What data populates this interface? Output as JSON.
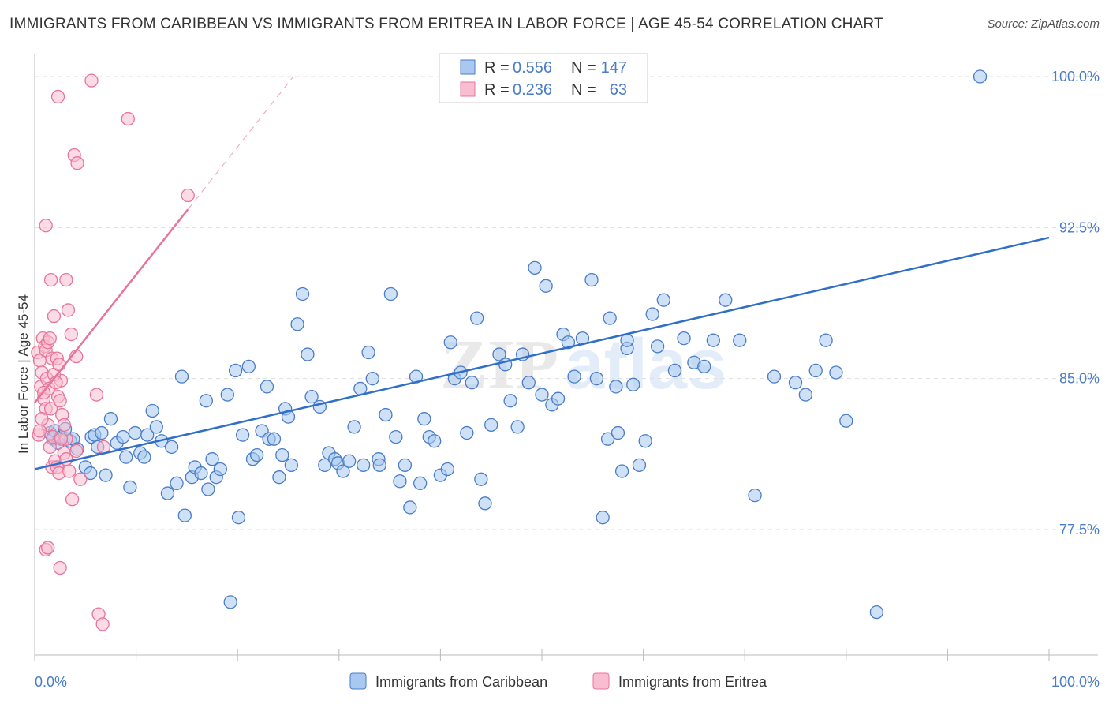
{
  "header": {
    "title": "IMMIGRANTS FROM CARIBBEAN VS IMMIGRANTS FROM ERITREA IN LABOR FORCE | AGE 45-54 CORRELATION CHART",
    "source": "Source: ZipAtlas.com"
  },
  "watermark": {
    "zip": "ZIP",
    "atlas": "atlas"
  },
  "stats_box": {
    "rows": [
      {
        "r_label": "R =",
        "r_value": "0.556",
        "n_label": "N =",
        "n_value": "147",
        "color": "#4a7cc7"
      },
      {
        "r_label": "R =",
        "r_value": "0.236",
        "n_label": "N =",
        "n_value": "63",
        "color": "#e8749a"
      }
    ]
  },
  "colors": {
    "caribbean_fill": "#a8c8f0",
    "caribbean_stroke": "#4a7cc7",
    "caribbean_line": "#2f6fc8",
    "eritrea_fill": "#f8bdd0",
    "eritrea_stroke": "#e8749a",
    "eritrea_line": "#e8749a",
    "grid": "#dddddd",
    "tick_label": "#4a7cc7"
  },
  "chart_data": {
    "type": "scatter",
    "title": "IMMIGRANTS FROM CARIBBEAN VS IMMIGRANTS FROM ERITREA IN LABOR FORCE | AGE 45-54 CORRELATION CHART",
    "xlabel": "",
    "ylabel": "In Labor Force | Age 45-54",
    "xlim": [
      0,
      100
    ],
    "ylim": [
      70.5,
      101.2
    ],
    "x_tick_labels": [
      "0.0%",
      "100.0%"
    ],
    "y_ticks": [
      77.5,
      85.0,
      92.5,
      100.0
    ],
    "y_tick_labels": [
      "77.5%",
      "85.0%",
      "92.5%",
      "100.0%"
    ],
    "grid": true,
    "legend_position": "bottom-center",
    "series": [
      {
        "name": "Immigrants from Caribbean",
        "r": 0.556,
        "n": 147,
        "trend": {
          "x0": 0,
          "y0": 80.5,
          "x1": 100,
          "y1": 92.0
        },
        "points": [
          [
            1.5,
            82.3
          ],
          [
            1.8,
            82.0
          ],
          [
            2.0,
            82.4
          ],
          [
            2.3,
            81.8
          ],
          [
            2.6,
            82.1
          ],
          [
            3.0,
            82.5
          ],
          [
            3.5,
            81.9
          ],
          [
            3.8,
            82.0
          ],
          [
            4.2,
            81.5
          ],
          [
            5.0,
            80.6
          ],
          [
            5.6,
            82.1
          ],
          [
            5.9,
            82.2
          ],
          [
            6.2,
            81.6
          ],
          [
            6.6,
            82.3
          ],
          [
            5.5,
            80.3
          ],
          [
            7.0,
            80.2
          ],
          [
            7.5,
            83.0
          ],
          [
            8.1,
            81.8
          ],
          [
            8.7,
            82.1
          ],
          [
            9.0,
            81.1
          ],
          [
            9.4,
            79.6
          ],
          [
            9.9,
            82.3
          ],
          [
            10.4,
            81.3
          ],
          [
            10.8,
            81.1
          ],
          [
            11.1,
            82.2
          ],
          [
            11.6,
            83.4
          ],
          [
            12.0,
            82.6
          ],
          [
            12.5,
            81.9
          ],
          [
            13.1,
            79.3
          ],
          [
            13.5,
            81.6
          ],
          [
            14.0,
            79.8
          ],
          [
            14.5,
            85.1
          ],
          [
            14.8,
            78.2
          ],
          [
            15.5,
            80.1
          ],
          [
            15.8,
            80.6
          ],
          [
            16.4,
            80.3
          ],
          [
            16.9,
            83.9
          ],
          [
            17.1,
            79.5
          ],
          [
            17.5,
            81.0
          ],
          [
            17.9,
            80.1
          ],
          [
            18.3,
            80.5
          ],
          [
            19.0,
            84.2
          ],
          [
            19.3,
            73.9
          ],
          [
            19.8,
            85.4
          ],
          [
            20.1,
            78.1
          ],
          [
            20.5,
            82.2
          ],
          [
            21.1,
            85.6
          ],
          [
            21.5,
            81.0
          ],
          [
            21.9,
            81.2
          ],
          [
            22.4,
            82.4
          ],
          [
            22.9,
            84.6
          ],
          [
            23.1,
            82.0
          ],
          [
            23.6,
            82.0
          ],
          [
            24.1,
            80.1
          ],
          [
            24.4,
            81.2
          ],
          [
            24.7,
            83.5
          ],
          [
            25.0,
            83.1
          ],
          [
            25.3,
            80.7
          ],
          [
            25.9,
            87.7
          ],
          [
            26.4,
            89.2
          ],
          [
            26.9,
            86.2
          ],
          [
            27.3,
            84.1
          ],
          [
            28.1,
            83.6
          ],
          [
            28.6,
            80.7
          ],
          [
            29.0,
            81.3
          ],
          [
            29.6,
            81.0
          ],
          [
            29.9,
            80.8
          ],
          [
            30.4,
            80.4
          ],
          [
            31.0,
            80.9
          ],
          [
            31.5,
            82.6
          ],
          [
            32.1,
            84.5
          ],
          [
            32.4,
            80.7
          ],
          [
            32.9,
            86.3
          ],
          [
            33.3,
            85.0
          ],
          [
            33.9,
            81.0
          ],
          [
            34.0,
            80.7
          ],
          [
            34.6,
            83.2
          ],
          [
            35.1,
            89.2
          ],
          [
            35.6,
            82.1
          ],
          [
            36.0,
            79.9
          ],
          [
            36.5,
            80.7
          ],
          [
            37.0,
            78.6
          ],
          [
            37.6,
            85.1
          ],
          [
            38.0,
            79.8
          ],
          [
            38.4,
            83.0
          ],
          [
            38.9,
            82.1
          ],
          [
            39.4,
            81.9
          ],
          [
            40.0,
            80.2
          ],
          [
            40.7,
            80.5
          ],
          [
            41.0,
            86.8
          ],
          [
            41.4,
            85.0
          ],
          [
            42.0,
            85.3
          ],
          [
            42.6,
            82.3
          ],
          [
            43.1,
            84.8
          ],
          [
            43.6,
            88.0
          ],
          [
            44.0,
            80.0
          ],
          [
            44.4,
            78.8
          ],
          [
            45.0,
            82.7
          ],
          [
            45.8,
            86.2
          ],
          [
            46.4,
            85.7
          ],
          [
            46.9,
            83.9
          ],
          [
            47.6,
            82.6
          ],
          [
            48.1,
            86.2
          ],
          [
            48.7,
            84.8
          ],
          [
            49.3,
            90.5
          ],
          [
            50.0,
            84.2
          ],
          [
            50.4,
            89.6
          ],
          [
            51.0,
            83.7
          ],
          [
            51.6,
            84.0
          ],
          [
            52.1,
            87.2
          ],
          [
            52.6,
            86.8
          ],
          [
            53.2,
            85.1
          ],
          [
            54.0,
            87.0
          ],
          [
            54.9,
            89.9
          ],
          [
            55.4,
            85.0
          ],
          [
            56.0,
            78.1
          ],
          [
            56.7,
            88.0
          ],
          [
            57.3,
            84.6
          ],
          [
            57.9,
            80.4
          ],
          [
            58.4,
            86.5
          ],
          [
            59.0,
            84.7
          ],
          [
            59.6,
            80.7
          ],
          [
            60.2,
            81.9
          ],
          [
            60.9,
            88.2
          ],
          [
            61.4,
            86.6
          ],
          [
            62.0,
            88.9
          ],
          [
            63.1,
            85.4
          ],
          [
            64.0,
            87.0
          ],
          [
            65.0,
            85.8
          ],
          [
            66.0,
            85.6
          ],
          [
            66.9,
            86.9
          ],
          [
            68.1,
            88.9
          ],
          [
            69.5,
            86.9
          ],
          [
            71.0,
            79.2
          ],
          [
            72.9,
            85.1
          ],
          [
            75.0,
            84.8
          ],
          [
            76.0,
            84.2
          ],
          [
            77.0,
            85.4
          ],
          [
            78.0,
            86.9
          ],
          [
            79.0,
            85.3
          ],
          [
            80.0,
            82.9
          ],
          [
            83.0,
            73.4
          ],
          [
            93.2,
            100.0
          ],
          [
            56.5,
            82.0
          ],
          [
            57.5,
            82.3
          ],
          [
            58.4,
            86.9
          ]
        ]
      },
      {
        "name": "Immigrants from Eritrea",
        "r": 0.236,
        "n": 63,
        "trend": {
          "x0": 0,
          "y0": 83.8,
          "x1": 15.1,
          "y1": 93.4
        },
        "trend_extension": {
          "x0": 15.1,
          "y0": 93.4,
          "x1": 25.5,
          "y1": 100.0
        },
        "points": [
          [
            0.3,
            86.3
          ],
          [
            0.5,
            85.9
          ],
          [
            0.7,
            85.3
          ],
          [
            0.9,
            84.0
          ],
          [
            1.1,
            83.5
          ],
          [
            1.3,
            82.7
          ],
          [
            1.5,
            81.6
          ],
          [
            1.7,
            80.6
          ],
          [
            2.0,
            80.9
          ],
          [
            0.4,
            82.2
          ],
          [
            0.6,
            84.6
          ],
          [
            0.8,
            87.0
          ],
          [
            1.0,
            86.6
          ],
          [
            1.2,
            85.0
          ],
          [
            1.4,
            84.5
          ],
          [
            1.6,
            83.5
          ],
          [
            1.8,
            82.1
          ],
          [
            2.2,
            80.6
          ],
          [
            2.4,
            80.3
          ],
          [
            2.6,
            84.9
          ],
          [
            2.9,
            81.3
          ],
          [
            3.1,
            81.0
          ],
          [
            3.4,
            80.4
          ],
          [
            3.7,
            79.0
          ],
          [
            4.1,
            81.4
          ],
          [
            4.5,
            80.0
          ],
          [
            0.5,
            82.4
          ],
          [
            0.7,
            83.0
          ],
          [
            0.9,
            84.3
          ],
          [
            1.1,
            86.4
          ],
          [
            1.3,
            86.8
          ],
          [
            1.5,
            87.0
          ],
          [
            1.7,
            86.0
          ],
          [
            1.9,
            85.2
          ],
          [
            2.1,
            84.8
          ],
          [
            2.3,
            84.1
          ],
          [
            2.5,
            83.9
          ],
          [
            2.7,
            83.2
          ],
          [
            2.9,
            82.7
          ],
          [
            3.1,
            82.0
          ],
          [
            1.1,
            92.6
          ],
          [
            1.6,
            89.9
          ],
          [
            1.9,
            88.1
          ],
          [
            2.2,
            86.0
          ],
          [
            2.4,
            85.7
          ],
          [
            2.6,
            82.0
          ],
          [
            3.1,
            89.9
          ],
          [
            3.3,
            88.4
          ],
          [
            3.6,
            87.2
          ],
          [
            4.1,
            86.1
          ],
          [
            2.3,
            99.0
          ],
          [
            3.9,
            96.1
          ],
          [
            4.2,
            95.7
          ],
          [
            5.6,
            99.8
          ],
          [
            6.1,
            84.2
          ],
          [
            6.8,
            81.6
          ],
          [
            9.2,
            97.9
          ],
          [
            15.1,
            94.1
          ],
          [
            1.1,
            76.5
          ],
          [
            1.3,
            76.6
          ],
          [
            2.5,
            75.6
          ],
          [
            6.3,
            73.3
          ],
          [
            6.7,
            72.8
          ]
        ]
      }
    ]
  },
  "legend": {
    "items": [
      {
        "label": "Immigrants from Caribbean",
        "color": "#4a7cc7"
      },
      {
        "label": "Immigrants from Eritrea",
        "color": "#e8749a"
      }
    ]
  }
}
